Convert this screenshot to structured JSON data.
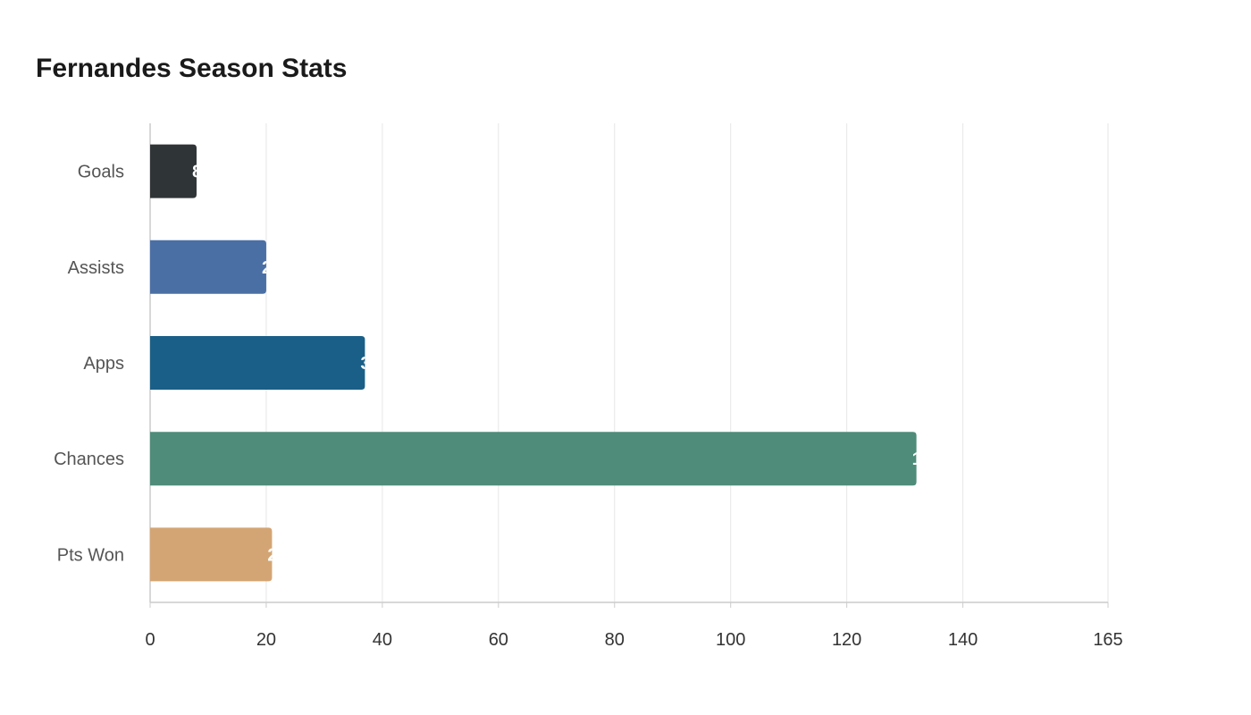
{
  "chart_data": {
    "type": "bar",
    "orientation": "horizontal",
    "title": "Fernandes Season Stats",
    "xlabel": "",
    "ylabel": "",
    "categories": [
      "Goals",
      "Assists",
      "Apps",
      "Chances",
      "Pts Won"
    ],
    "values": [
      8,
      20,
      37,
      132,
      21
    ],
    "colors": [
      "#2f3436",
      "#4a6fa5",
      "#1a5f87",
      "#4f8c7a",
      "#d4a574"
    ],
    "xlim": [
      0,
      165
    ],
    "xticks": [
      0,
      20,
      40,
      60,
      80,
      100,
      120,
      140,
      165
    ],
    "grid": true,
    "legend": "none"
  }
}
